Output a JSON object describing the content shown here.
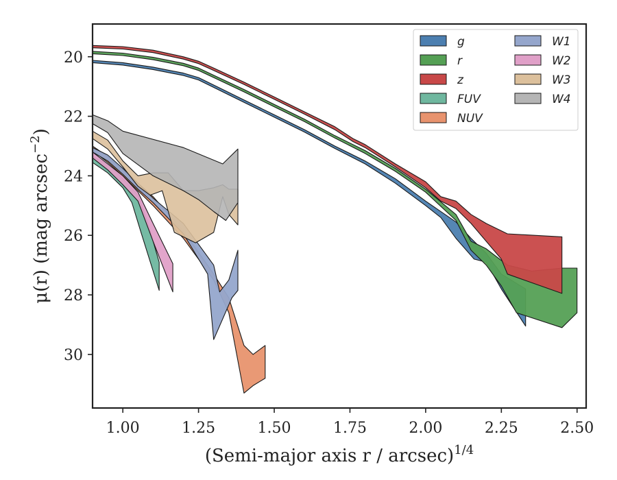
{
  "chart_data": {
    "type": "area",
    "xlabel": "(Semi-major axis r / arcsec)",
    "xlabel_exponent": "1/4",
    "ylabel": "μ(r) (mag arcsec",
    "ylabel_exponent": "−2",
    "ylabel_close": ")",
    "xlim": [
      0.9,
      2.53
    ],
    "ylim": [
      31.8,
      18.9
    ],
    "y_inverted": true,
    "x_ticks": [
      1.0,
      1.25,
      1.5,
      1.75,
      2.0,
      2.25,
      2.5
    ],
    "x_tick_labels": [
      "1.00",
      "1.25",
      "1.50",
      "1.75",
      "2.00",
      "2.25",
      "2.50"
    ],
    "y_ticks": [
      20,
      22,
      24,
      26,
      28,
      30
    ],
    "y_tick_labels": [
      "20",
      "22",
      "24",
      "26",
      "28",
      "30"
    ],
    "legend_position": "top-right",
    "legend_columns": 2,
    "series": [
      {
        "name": "g",
        "color": "#4c7fb0",
        "upper": [
          [
            0.9,
            20.12
          ],
          [
            1.0,
            20.2
          ],
          [
            1.1,
            20.35
          ],
          [
            1.2,
            20.55
          ],
          [
            1.25,
            20.7
          ],
          [
            1.3,
            20.95
          ],
          [
            1.4,
            21.45
          ],
          [
            1.5,
            21.95
          ],
          [
            1.6,
            22.45
          ],
          [
            1.7,
            23.0
          ],
          [
            1.8,
            23.5
          ],
          [
            1.9,
            24.1
          ],
          [
            2.0,
            24.85
          ],
          [
            2.1,
            25.55
          ],
          [
            2.15,
            26.1
          ],
          [
            2.2,
            26.6
          ],
          [
            2.25,
            27.3
          ],
          [
            2.33,
            27.8
          ]
        ],
        "lower": [
          [
            0.9,
            20.2
          ],
          [
            1.0,
            20.28
          ],
          [
            1.1,
            20.43
          ],
          [
            1.2,
            20.63
          ],
          [
            1.25,
            20.78
          ],
          [
            1.3,
            21.03
          ],
          [
            1.4,
            21.53
          ],
          [
            1.5,
            22.03
          ],
          [
            1.6,
            22.53
          ],
          [
            1.7,
            23.08
          ],
          [
            1.8,
            23.6
          ],
          [
            1.9,
            24.25
          ],
          [
            2.0,
            25.0
          ],
          [
            2.05,
            25.4
          ],
          [
            2.1,
            26.1
          ],
          [
            2.16,
            26.8
          ],
          [
            2.2,
            26.9
          ],
          [
            2.25,
            27.8
          ],
          [
            2.33,
            29.05
          ]
        ]
      },
      {
        "name": "r",
        "color": "#55a055",
        "upper": [
          [
            0.9,
            19.82
          ],
          [
            1.0,
            19.88
          ],
          [
            1.1,
            20.02
          ],
          [
            1.2,
            20.22
          ],
          [
            1.25,
            20.38
          ],
          [
            1.3,
            20.62
          ],
          [
            1.4,
            21.1
          ],
          [
            1.5,
            21.6
          ],
          [
            1.6,
            22.1
          ],
          [
            1.7,
            22.65
          ],
          [
            1.8,
            23.15
          ],
          [
            1.9,
            23.75
          ],
          [
            2.0,
            24.45
          ],
          [
            2.1,
            25.3
          ],
          [
            2.15,
            26.2
          ],
          [
            2.2,
            26.45
          ],
          [
            2.27,
            27.0
          ],
          [
            2.35,
            27.2
          ],
          [
            2.45,
            27.1
          ],
          [
            2.5,
            27.1
          ]
        ],
        "lower": [
          [
            0.9,
            19.9
          ],
          [
            1.0,
            19.96
          ],
          [
            1.1,
            20.1
          ],
          [
            1.2,
            20.3
          ],
          [
            1.25,
            20.46
          ],
          [
            1.3,
            20.7
          ],
          [
            1.4,
            21.18
          ],
          [
            1.5,
            21.68
          ],
          [
            1.6,
            22.18
          ],
          [
            1.7,
            22.73
          ],
          [
            1.8,
            23.25
          ],
          [
            1.9,
            23.85
          ],
          [
            2.0,
            24.55
          ],
          [
            2.1,
            25.5
          ],
          [
            2.15,
            26.5
          ],
          [
            2.2,
            27.0
          ],
          [
            2.25,
            27.7
          ],
          [
            2.3,
            28.6
          ],
          [
            2.45,
            29.1
          ],
          [
            2.5,
            28.6
          ]
        ]
      },
      {
        "name": "z",
        "color": "#c84848",
        "upper": [
          [
            0.9,
            19.62
          ],
          [
            1.0,
            19.66
          ],
          [
            1.1,
            19.78
          ],
          [
            1.2,
            20.0
          ],
          [
            1.25,
            20.15
          ],
          [
            1.3,
            20.38
          ],
          [
            1.4,
            20.85
          ],
          [
            1.5,
            21.35
          ],
          [
            1.6,
            21.85
          ],
          [
            1.7,
            22.35
          ],
          [
            1.76,
            22.75
          ],
          [
            1.8,
            22.95
          ],
          [
            1.9,
            23.6
          ],
          [
            2.0,
            24.2
          ],
          [
            2.05,
            24.7
          ],
          [
            2.1,
            24.85
          ],
          [
            2.15,
            25.3
          ],
          [
            2.2,
            25.6
          ],
          [
            2.27,
            25.95
          ],
          [
            2.45,
            26.05
          ]
        ],
        "lower": [
          [
            0.9,
            19.7
          ],
          [
            1.0,
            19.74
          ],
          [
            1.1,
            19.86
          ],
          [
            1.2,
            20.08
          ],
          [
            1.25,
            20.23
          ],
          [
            1.3,
            20.46
          ],
          [
            1.4,
            20.93
          ],
          [
            1.5,
            21.43
          ],
          [
            1.6,
            21.93
          ],
          [
            1.7,
            22.45
          ],
          [
            1.76,
            22.85
          ],
          [
            1.8,
            23.05
          ],
          [
            1.9,
            23.7
          ],
          [
            2.0,
            24.4
          ],
          [
            2.05,
            24.85
          ],
          [
            2.1,
            25.1
          ],
          [
            2.15,
            25.6
          ],
          [
            2.2,
            26.2
          ],
          [
            2.25,
            26.8
          ],
          [
            2.27,
            27.3
          ],
          [
            2.45,
            27.95
          ]
        ]
      },
      {
        "name": "FUV",
        "color": "#6fb79f",
        "upper": [
          [
            0.9,
            23.35
          ],
          [
            0.95,
            23.6
          ],
          [
            1.0,
            24.1
          ],
          [
            1.05,
            24.65
          ],
          [
            1.08,
            25.5
          ],
          [
            1.12,
            26.9
          ]
        ],
        "lower": [
          [
            0.9,
            23.55
          ],
          [
            0.95,
            23.9
          ],
          [
            1.0,
            24.4
          ],
          [
            1.03,
            24.9
          ],
          [
            1.06,
            25.9
          ],
          [
            1.12,
            27.85
          ]
        ]
      },
      {
        "name": "NUV",
        "color": "#e8936e",
        "upper": [
          [
            0.9,
            23.0
          ],
          [
            0.95,
            23.35
          ],
          [
            1.0,
            23.8
          ],
          [
            1.1,
            24.7
          ],
          [
            1.2,
            25.85
          ],
          [
            1.3,
            27.3
          ],
          [
            1.35,
            28.1
          ],
          [
            1.4,
            29.7
          ],
          [
            1.43,
            30.0
          ],
          [
            1.47,
            29.7
          ]
        ],
        "lower": [
          [
            0.9,
            23.15
          ],
          [
            0.95,
            23.55
          ],
          [
            1.0,
            24.0
          ],
          [
            1.1,
            25.0
          ],
          [
            1.2,
            26.1
          ],
          [
            1.3,
            27.5
          ],
          [
            1.35,
            28.6
          ],
          [
            1.4,
            31.3
          ],
          [
            1.43,
            31.05
          ],
          [
            1.47,
            30.8
          ]
        ]
      },
      {
        "name": "W1",
        "color": "#95a6cc",
        "upper": [
          [
            0.9,
            23.05
          ],
          [
            0.95,
            23.3
          ],
          [
            1.0,
            23.75
          ],
          [
            1.05,
            24.25
          ],
          [
            1.1,
            24.75
          ],
          [
            1.2,
            25.6
          ],
          [
            1.3,
            27.0
          ],
          [
            1.32,
            27.9
          ],
          [
            1.35,
            27.5
          ],
          [
            1.38,
            26.5
          ]
        ],
        "lower": [
          [
            0.9,
            23.2
          ],
          [
            0.95,
            23.5
          ],
          [
            1.0,
            23.95
          ],
          [
            1.05,
            24.45
          ],
          [
            1.1,
            24.9
          ],
          [
            1.2,
            25.95
          ],
          [
            1.28,
            27.3
          ],
          [
            1.3,
            29.5
          ],
          [
            1.36,
            28.1
          ],
          [
            1.38,
            27.85
          ]
        ]
      },
      {
        "name": "W2",
        "color": "#e0a0c8",
        "upper": [
          [
            0.9,
            23.2
          ],
          [
            0.95,
            23.6
          ],
          [
            1.0,
            24.0
          ],
          [
            1.05,
            24.55
          ],
          [
            1.1,
            25.6
          ],
          [
            1.165,
            26.95
          ]
        ],
        "lower": [
          [
            0.9,
            23.4
          ],
          [
            0.95,
            23.8
          ],
          [
            1.0,
            24.3
          ],
          [
            1.05,
            24.85
          ],
          [
            1.1,
            26.2
          ],
          [
            1.165,
            27.9
          ]
        ]
      },
      {
        "name": "W3",
        "color": "#dcc09c",
        "upper": [
          [
            0.9,
            22.5
          ],
          [
            0.95,
            22.8
          ],
          [
            1.0,
            23.5
          ],
          [
            1.05,
            24.0
          ],
          [
            1.1,
            23.9
          ],
          [
            1.15,
            23.9
          ],
          [
            1.2,
            24.5
          ],
          [
            1.25,
            24.5
          ],
          [
            1.3,
            24.4
          ],
          [
            1.33,
            24.3
          ],
          [
            1.35,
            24.45
          ],
          [
            1.38,
            24.45
          ]
        ],
        "lower": [
          [
            0.9,
            22.75
          ],
          [
            0.95,
            23.1
          ],
          [
            1.0,
            23.7
          ],
          [
            1.05,
            24.35
          ],
          [
            1.09,
            24.65
          ],
          [
            1.13,
            24.5
          ],
          [
            1.17,
            25.9
          ],
          [
            1.24,
            26.25
          ],
          [
            1.3,
            25.9
          ],
          [
            1.33,
            24.7
          ],
          [
            1.35,
            25.3
          ],
          [
            1.38,
            25.65
          ]
        ]
      },
      {
        "name": "W4",
        "color": "#b5b5b5",
        "upper": [
          [
            0.9,
            21.95
          ],
          [
            0.95,
            22.15
          ],
          [
            1.0,
            22.5
          ],
          [
            1.2,
            23.05
          ],
          [
            1.33,
            23.6
          ],
          [
            1.38,
            23.1
          ]
        ],
        "lower": [
          [
            0.9,
            22.25
          ],
          [
            0.95,
            22.55
          ],
          [
            1.0,
            23.25
          ],
          [
            1.1,
            24.0
          ],
          [
            1.2,
            24.5
          ],
          [
            1.25,
            24.8
          ],
          [
            1.3,
            25.2
          ],
          [
            1.34,
            25.5
          ],
          [
            1.38,
            24.9
          ]
        ]
      }
    ]
  }
}
